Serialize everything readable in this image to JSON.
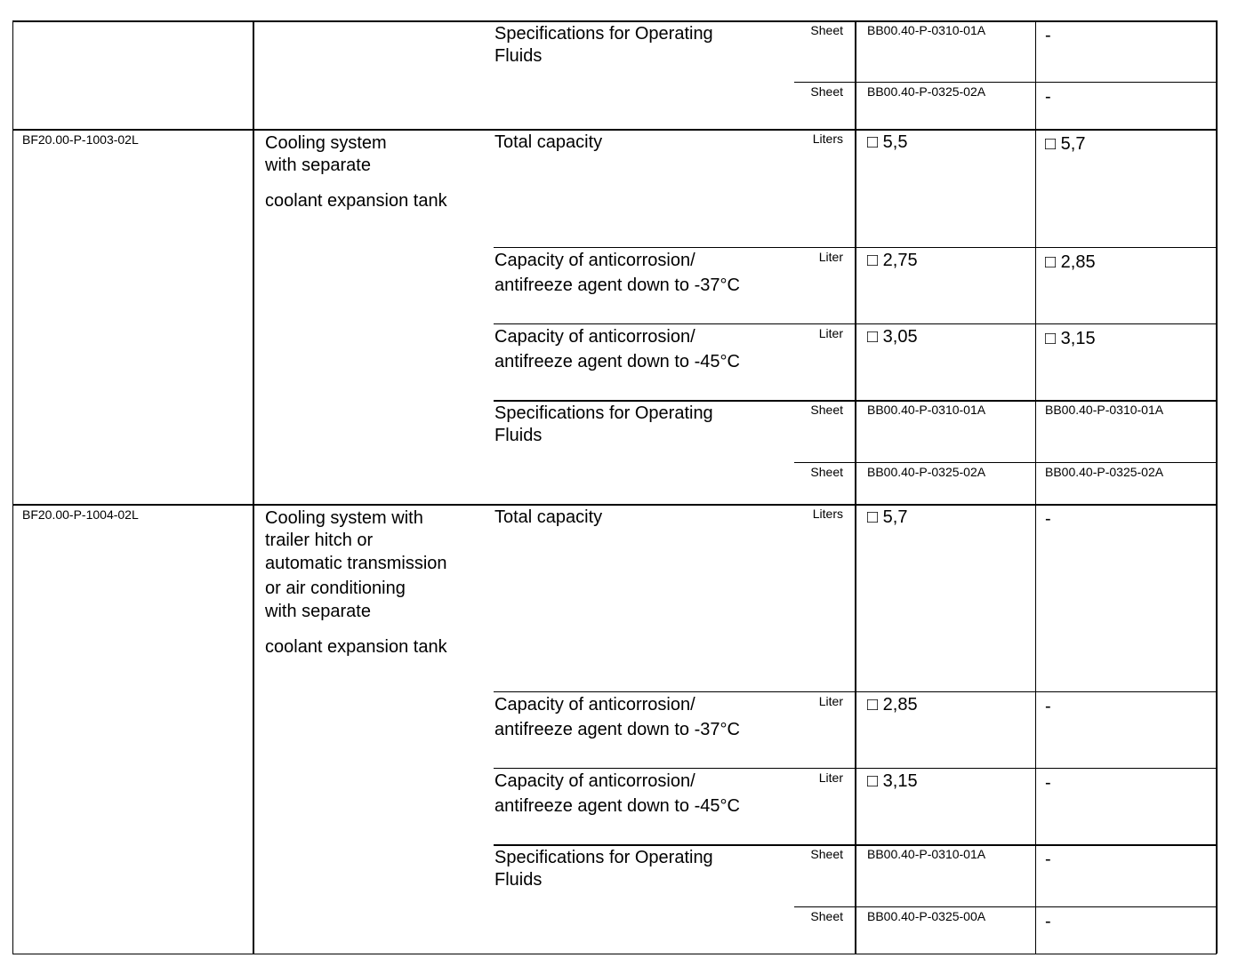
{
  "sections": [
    {
      "code": "",
      "description": [],
      "rows": [
        {
          "label": [
            "Specifications for Operating",
            "Fluids"
          ],
          "sub": [
            {
              "unit": "Sheet",
              "v1": "BB00.40-P-0310-01A",
              "v2": "-"
            },
            {
              "unit": "Sheet",
              "v1": "BB00.40-P-0325-02A",
              "v2": "-"
            }
          ]
        }
      ]
    },
    {
      "code": "BF20.00-P-1003-02L",
      "description": [
        "Cooling system",
        "with  separate",
        "",
        "coolant expansion tank"
      ],
      "rows": [
        {
          "label": [
            "Total capacity"
          ],
          "sub": [
            {
              "unit": "Liters",
              "v1": "□  5,5",
              "v2": "□  5,7"
            }
          ]
        },
        {
          "label": [
            "Capacity of anticorrosion/",
            "antifreeze agent down to -37"
          ],
          "degree": "°C",
          "sub": [
            {
              "unit": "Liter",
              "v1": "□  2,75",
              "v2": "□  2,85"
            }
          ]
        },
        {
          "label": [
            "Capacity of anticorrosion/",
            "antifreeze agent down to -45"
          ],
          "degree": "°C",
          "sub": [
            {
              "unit": "Liter",
              "v1": "□  3,05",
              "v2": "□  3,15"
            }
          ]
        },
        {
          "label": [
            "Specifications for Operating",
            "Fluids"
          ],
          "sub": [
            {
              "unit": "Sheet",
              "v1": "BB00.40-P-0310-01A",
              "v2": "BB00.40-P-0310-01A"
            },
            {
              "unit": "Sheet",
              "v1": "BB00.40-P-0325-02A",
              "v2": "BB00.40-P-0325-02A"
            }
          ]
        }
      ]
    },
    {
      "code": "BF20.00-P-1004-02L",
      "description": [
        "Cooling system with",
        "trailer hitch or",
        "automatic transmission",
        "or air conditioning",
        "with  separate",
        "",
        "coolant expansion tank"
      ],
      "rows": [
        {
          "label": [
            "Total capacity"
          ],
          "sub": [
            {
              "unit": "Liters",
              "v1": "□  5,7",
              "v2": "-"
            }
          ]
        },
        {
          "label": [
            "Capacity of anticorrosion/",
            "antifreeze agent down to -37"
          ],
          "degree": "°C",
          "sub": [
            {
              "unit": "Liter",
              "v1": "□  2,85",
              "v2": "-"
            }
          ]
        },
        {
          "label": [
            "Capacity of anticorrosion/",
            "antifreeze agent down to -45"
          ],
          "degree": "°C",
          "sub": [
            {
              "unit": "Liter",
              "v1": "□  3,15",
              "v2": "-"
            }
          ]
        },
        {
          "label": [
            "Specifications for Operating",
            "Fluids"
          ],
          "sub": [
            {
              "unit": "Sheet",
              "v1": "BB00.40-P-0310-01A",
              "v2": "-"
            },
            {
              "unit": "Sheet",
              "v1": "BB00.40-P-0325-00A",
              "v2": "-"
            }
          ]
        }
      ]
    }
  ]
}
